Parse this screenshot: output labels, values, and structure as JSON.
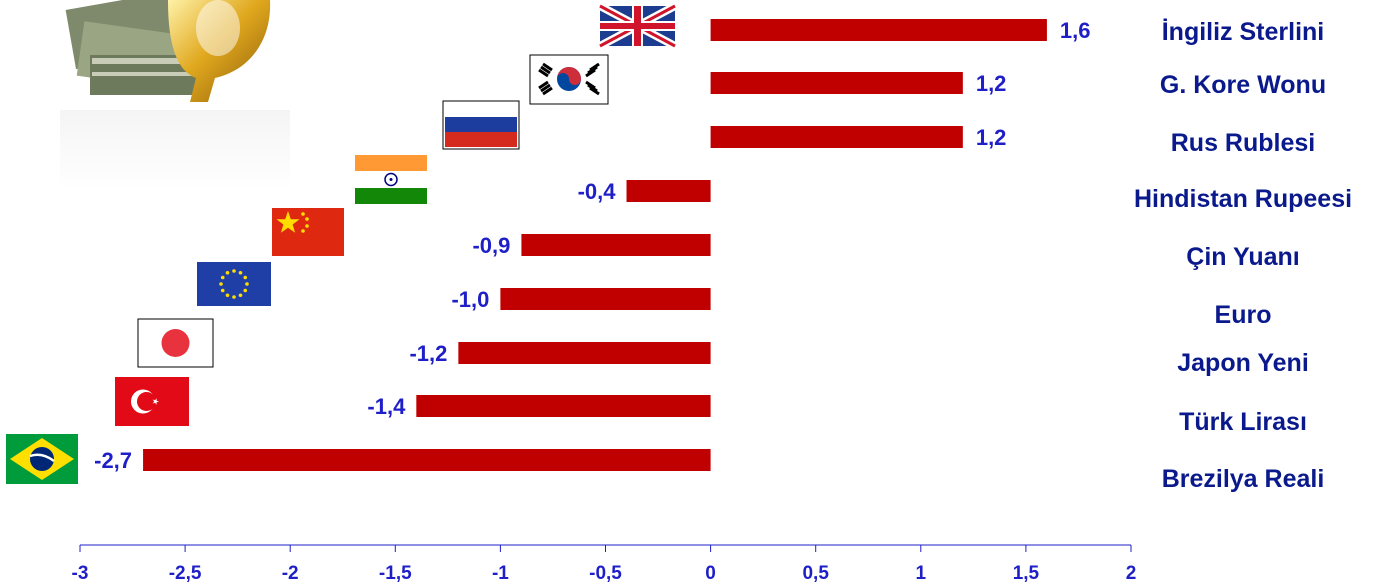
{
  "chart_data": {
    "type": "bar",
    "orientation": "horizontal",
    "categories": [
      "İngiliz  Sterlini",
      "G. Kore Wonu",
      "Rus Rublesi",
      "Hindistan  Rupeesi",
      "Çin Yuanı",
      "Euro",
      "Japon Yeni",
      "Türk Lirası",
      "Brezilya  Reali"
    ],
    "values": [
      1.6,
      1.2,
      1.2,
      -0.4,
      -0.9,
      -1.0,
      -1.2,
      -1.4,
      -2.7
    ],
    "value_labels": [
      "1,6",
      "1,2",
      "1,2",
      "-0,4",
      "-0,9",
      "-1,0",
      "-1,2",
      "-1,4",
      "-2,7"
    ],
    "flags": [
      "uk-flag-icon",
      "south-korea-flag-icon",
      "russia-flag-icon",
      "india-flag-icon",
      "china-flag-icon",
      "eu-flag-icon",
      "japan-flag-icon",
      "turkey-flag-icon",
      "brazil-flag-icon"
    ],
    "xlim": [
      -3,
      2
    ],
    "xticks": [
      -3,
      -2.5,
      -2,
      -1.5,
      -1,
      -0.5,
      0,
      0.5,
      1,
      1.5,
      2
    ],
    "xtick_labels": [
      "-3",
      "-2,5",
      "-2",
      "-1,5",
      "-1",
      "-0,5",
      "0",
      "0,5",
      "1",
      "1,5",
      "2"
    ],
    "grid": false,
    "bar_color": "#c00000",
    "label_color": "#1f1fc8",
    "category_color": "#0a1a8c",
    "axis_color": "#1f1fc8"
  },
  "decoration": {
    "image": "money-dollar-sign-icon"
  }
}
